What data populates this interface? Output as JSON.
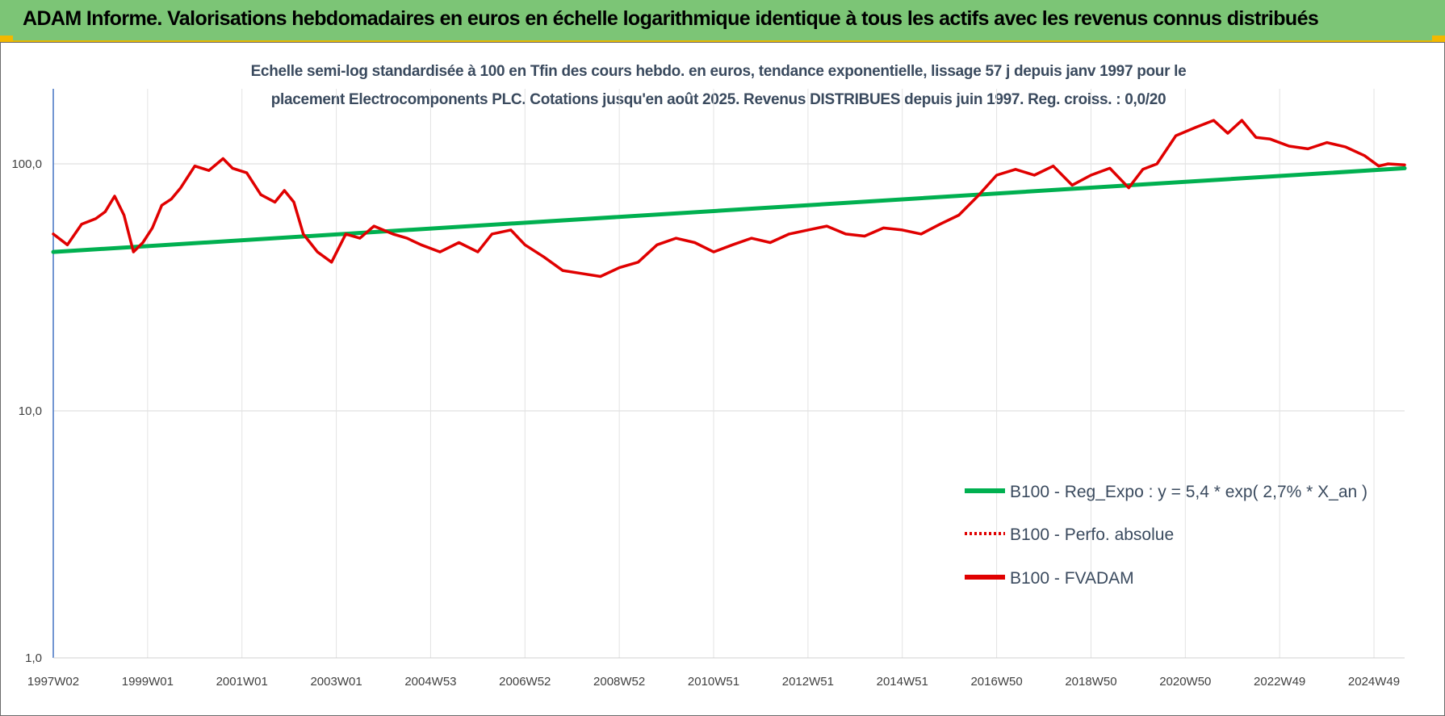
{
  "header": {
    "title": "ADAM Informe. Valorisations hebdomadaires en euros en échelle logarithmique identique à tous les actifs avec les revenus connus distribués"
  },
  "colors": {
    "banner": "#7cc576",
    "regression": "#00b050",
    "fvadam": "#e00000",
    "perf": "#e00000",
    "accent": "#f2b800"
  },
  "chart_data": {
    "type": "line",
    "title_line1": "Echelle semi-log standardisée à 100 en Tfin des cours hebdo. en euros, tendance exponentielle, lissage 57 j depuis janv 1997 pour le",
    "title_line2": "placement Electrocomponents PLC. Cotations jusqu'en août 2025. Revenus DISTRIBUES depuis juin 1997. Reg. croiss. : 0,0/20",
    "y_scale": "log",
    "ylim": [
      1,
      200
    ],
    "yticks": [
      {
        "value": 1,
        "label": "1,0"
      },
      {
        "value": 10,
        "label": "10,0"
      },
      {
        "value": 100,
        "label": "100,0"
      }
    ],
    "xlim": [
      1997.0,
      2025.65
    ],
    "xticks": [
      {
        "value": 1997.0,
        "label": "1997W02"
      },
      {
        "value": 1999.0,
        "label": "1999W01"
      },
      {
        "value": 2001.0,
        "label": "2001W01"
      },
      {
        "value": 2003.0,
        "label": "2003W01"
      },
      {
        "value": 2005.0,
        "label": "2004W53"
      },
      {
        "value": 2007.0,
        "label": "2006W52"
      },
      {
        "value": 2009.0,
        "label": "2008W52"
      },
      {
        "value": 2011.0,
        "label": "2010W51"
      },
      {
        "value": 2013.0,
        "label": "2012W51"
      },
      {
        "value": 2015.0,
        "label": "2014W51"
      },
      {
        "value": 2017.0,
        "label": "2016W50"
      },
      {
        "value": 2019.0,
        "label": "2018W50"
      },
      {
        "value": 2021.0,
        "label": "2020W50"
      },
      {
        "value": 2023.0,
        "label": "2022W49"
      },
      {
        "value": 2025.0,
        "label": "2024W49"
      }
    ],
    "grid": true,
    "legend_position": "right",
    "series": [
      {
        "name": "B100 - Reg_Expo : y = 5,4 * exp( 2,7% *  X_an )",
        "color": "#00b050",
        "style": "solid",
        "x": [
          1997.0,
          2025.65
        ],
        "y": [
          44,
          96
        ]
      },
      {
        "name": "B100 - Perfo. absolue",
        "color": "#e00000",
        "style": "dotted",
        "x": [],
        "y": []
      },
      {
        "name": "B100 - FVADAM",
        "color": "#e00000",
        "style": "solid",
        "x": [
          1997.0,
          1997.3,
          1997.6,
          1997.9,
          1998.1,
          1998.3,
          1998.5,
          1998.7,
          1998.9,
          1999.1,
          1999.3,
          1999.5,
          1999.7,
          2000.0,
          2000.3,
          2000.6,
          2000.8,
          2001.1,
          2001.4,
          2001.7,
          2001.9,
          2002.1,
          2002.3,
          2002.6,
          2002.9,
          2003.2,
          2003.5,
          2003.8,
          2004.2,
          2004.5,
          2004.8,
          2005.2,
          2005.6,
          2006.0,
          2006.3,
          2006.7,
          2007.0,
          2007.4,
          2007.8,
          2008.2,
          2008.6,
          2009.0,
          2009.4,
          2009.8,
          2010.2,
          2010.6,
          2011.0,
          2011.4,
          2011.8,
          2012.2,
          2012.6,
          2013.0,
          2013.4,
          2013.8,
          2014.2,
          2014.6,
          2015.0,
          2015.4,
          2015.8,
          2016.2,
          2016.6,
          2017.0,
          2017.4,
          2017.8,
          2018.2,
          2018.6,
          2019.0,
          2019.4,
          2019.8,
          2020.1,
          2020.4,
          2020.8,
          2021.2,
          2021.6,
          2021.9,
          2022.2,
          2022.5,
          2022.8,
          2023.2,
          2023.6,
          2024.0,
          2024.4,
          2024.8,
          2025.1,
          2025.3,
          2025.65
        ],
        "y": [
          52,
          47,
          57,
          60,
          64,
          74,
          62,
          44,
          48,
          55,
          68,
          72,
          80,
          98,
          94,
          105,
          96,
          92,
          75,
          70,
          78,
          70,
          52,
          44,
          40,
          52,
          50,
          56,
          52,
          50,
          47,
          44,
          48,
          44,
          52,
          54,
          47,
          42,
          37,
          36,
          35,
          38,
          40,
          47,
          50,
          48,
          44,
          47,
          50,
          48,
          52,
          54,
          56,
          52,
          51,
          55,
          54,
          52,
          57,
          62,
          74,
          90,
          95,
          90,
          98,
          82,
          90,
          96,
          80,
          95,
          100,
          130,
          140,
          150,
          133,
          150,
          128,
          126,
          118,
          115,
          122,
          117,
          108,
          98,
          100,
          99
        ]
      }
    ]
  }
}
